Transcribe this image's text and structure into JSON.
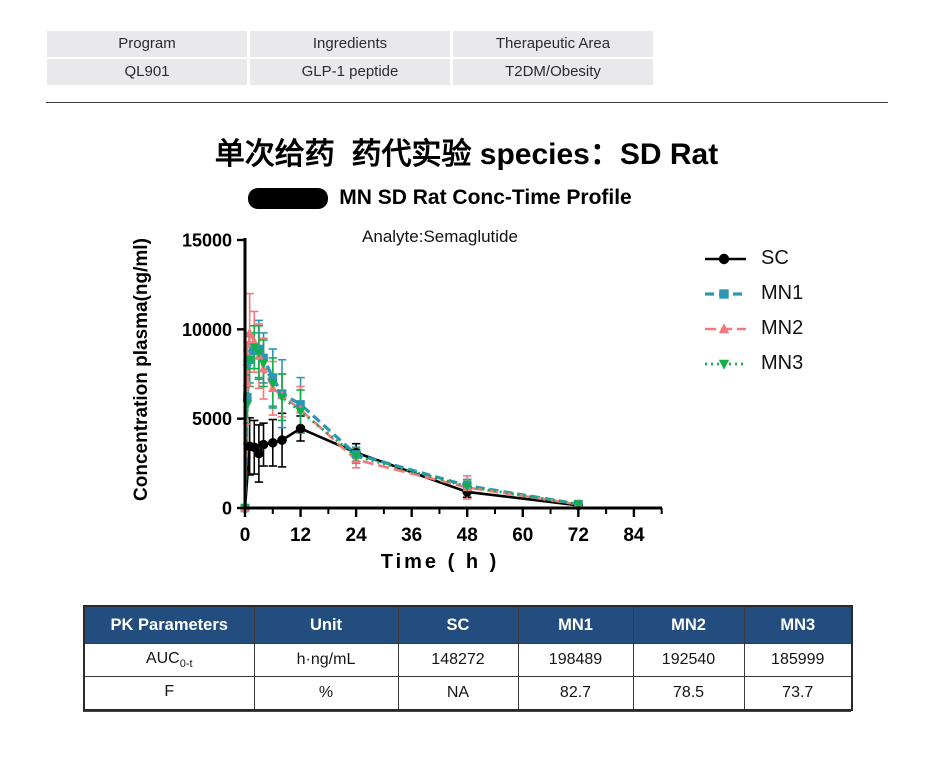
{
  "info_table": {
    "headers": [
      "Program",
      "Ingredients",
      "Therapeutic Area"
    ],
    "values": [
      "QL901",
      "GLP-1 peptide",
      "T2DM/Obesity"
    ]
  },
  "title": "单次给药  药代实验 species：SD Rat",
  "chart_data": {
    "type": "line",
    "title": "MN SD Rat Conc-Time Profile",
    "subtitle": "Analyte:Semaglutide",
    "xlabel": "Time ( h )",
    "ylabel": "Concentration plasma(ng/ml)",
    "xlim": [
      0,
      90
    ],
    "ylim": [
      0,
      15000
    ],
    "x_ticks": [
      0,
      12,
      24,
      36,
      48,
      60,
      72,
      84
    ],
    "y_ticks": [
      0,
      5000,
      10000,
      15000
    ],
    "grid": false,
    "legend_position": "right",
    "series": [
      {
        "name": "SC",
        "color": "#000000",
        "marker": "circle",
        "dash": "solid",
        "lw": 2.6,
        "x": [
          0,
          1,
          2,
          3,
          4,
          6,
          8,
          12,
          24,
          48,
          72
        ],
        "y": [
          0,
          3450,
          3400,
          3050,
          3550,
          3650,
          3800,
          4450,
          3100,
          900,
          150
        ],
        "yerr": [
          0,
          1600,
          1500,
          1600,
          1200,
          1300,
          1500,
          700,
          500,
          300,
          120
        ]
      },
      {
        "name": "MN1",
        "color": "#2E96B5",
        "marker": "square",
        "dash": "9 5",
        "lw": 3.2,
        "x": [
          0,
          0.5,
          1,
          2,
          3,
          4,
          6,
          8,
          12,
          24,
          48,
          72
        ],
        "y": [
          0,
          6200,
          8300,
          8800,
          8900,
          8400,
          7300,
          6400,
          5800,
          3000,
          1250,
          220
        ],
        "yerr": [
          0,
          2600,
          1300,
          1000,
          1600,
          1400,
          1600,
          1900,
          1500,
          400,
          350,
          120
        ]
      },
      {
        "name": "MN2",
        "color": "#F4797F",
        "marker": "triangle",
        "dash": "11 5",
        "lw": 2.6,
        "x": [
          0,
          0.5,
          1,
          2,
          3,
          4,
          6,
          8,
          12,
          24,
          48,
          72
        ],
        "y": [
          0,
          7000,
          9800,
          9300,
          8500,
          7800,
          6700,
          6300,
          5500,
          2700,
          1150,
          200
        ],
        "yerr": [
          0,
          2300,
          2200,
          1700,
          1800,
          1700,
          1500,
          1200,
          1300,
          450,
          650,
          110
        ]
      },
      {
        "name": "MN3",
        "color": "#12B04B",
        "marker": "triangle-down",
        "dash": "2 4",
        "lw": 2.8,
        "x": [
          0,
          0.5,
          1,
          2,
          3,
          4,
          6,
          8,
          12,
          24,
          48,
          72
        ],
        "y": [
          0,
          5800,
          8300,
          9000,
          8700,
          8100,
          7000,
          6200,
          5400,
          2900,
          1200,
          210
        ],
        "yerr": [
          0,
          2200,
          1500,
          1200,
          1500,
          1300,
          1400,
          1300,
          1200,
          400,
          300,
          100
        ]
      }
    ]
  },
  "pk_table": {
    "header_bg": "#234D7E",
    "headers": [
      "PK Parameters",
      "Unit",
      "SC",
      "MN1",
      "MN2",
      "MN3"
    ],
    "rows": [
      {
        "param": "AUC",
        "param_sub": "0-t",
        "unit": "h·ng/mL",
        "values": [
          "148272",
          "198489",
          "192540",
          "185999"
        ]
      },
      {
        "param": "F",
        "param_sub": "",
        "unit": "%",
        "values": [
          "NA",
          "82.7",
          "78.5",
          "73.7"
        ]
      }
    ]
  }
}
